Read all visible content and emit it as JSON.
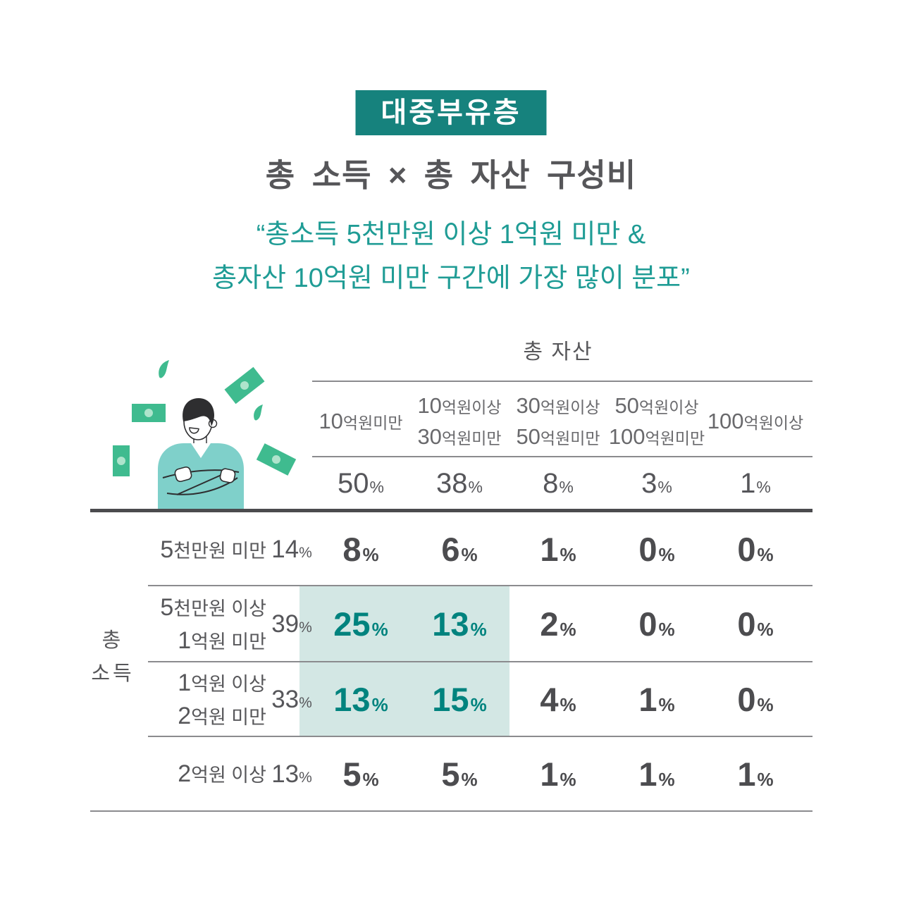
{
  "badge": {
    "label": "대중부유층",
    "bg_color": "#16827D",
    "text_color": "#FFFFFF"
  },
  "title": "총 소득 × 총 자산 구성비",
  "quote": {
    "line1": "“총소득 5천만원 이상 1억원 미만 &",
    "line2": "총자산 10억원 미만 구간에 가장 많이 분포”",
    "color": "#1F9C95"
  },
  "illustration": {
    "description": "person-with-arms-crossed-and-falling-banknotes",
    "money_color": "#3FBB8F",
    "money_dot_color": "#AEE4CC",
    "sweater_color": "#7FD0CA",
    "hair_color": "#2E2E30"
  },
  "table": {
    "col_axis_label": "총 자산",
    "row_axis_lines": [
      "총",
      "소득"
    ],
    "percent_sign": "%",
    "columns": [
      {
        "lines": [
          "10억원미만"
        ],
        "total": 50
      },
      {
        "lines": [
          "10억원이상",
          "30억원미만"
        ],
        "total": 38
      },
      {
        "lines": [
          "30억원이상",
          "50억원미만"
        ],
        "total": 8
      },
      {
        "lines": [
          "50억원이상",
          "100억원미만"
        ],
        "total": 3
      },
      {
        "lines": [
          "100억원이상"
        ],
        "total": 1
      }
    ],
    "rows": [
      {
        "lines": [
          "5천만원 미만"
        ],
        "total": 14,
        "values": [
          8,
          6,
          1,
          0,
          0
        ],
        "highlight": []
      },
      {
        "lines": [
          "5천만원 이상",
          "1억원 미만"
        ],
        "total": 39,
        "values": [
          25,
          13,
          2,
          0,
          0
        ],
        "highlight": [
          0,
          1
        ]
      },
      {
        "lines": [
          "1억원 이상",
          "2억원 미만"
        ],
        "total": 33,
        "values": [
          13,
          15,
          4,
          1,
          0
        ],
        "highlight": [
          0,
          1
        ]
      },
      {
        "lines": [
          "2억원 이상"
        ],
        "total": 13,
        "values": [
          5,
          5,
          1,
          1,
          1
        ],
        "highlight": []
      }
    ],
    "highlight_bg_color": "#D3E7E4",
    "highlight_text_color": "#00837E"
  },
  "chart_data": {
    "type": "table",
    "group_label": "대중부유층",
    "title": "총 소득 × 총 자산 구성비",
    "annotation": "총소득 5천만원 이상 1억원 미만 & 총자산 10억원 미만 구간에 가장 많이 분포",
    "column_axis": "총 자산",
    "row_axis": "총 소득",
    "columns": [
      "10억원미만",
      "10억원이상 30억원미만",
      "30억원이상 50억원미만",
      "50억원이상 100억원미만",
      "100억원이상"
    ],
    "column_totals_pct": [
      50,
      38,
      8,
      3,
      1
    ],
    "rows": [
      "5천만원 미만",
      "5천만원 이상 1억원 미만",
      "1억원 이상 2억원 미만",
      "2억원 이상"
    ],
    "row_totals_pct": [
      14,
      39,
      33,
      13
    ],
    "values_pct": [
      [
        8,
        6,
        1,
        0,
        0
      ],
      [
        25,
        13,
        2,
        0,
        0
      ],
      [
        13,
        15,
        4,
        1,
        0
      ],
      [
        5,
        5,
        1,
        1,
        1
      ]
    ],
    "highlighted_cells_row_col": [
      [
        1,
        0
      ],
      [
        1,
        1
      ],
      [
        2,
        0
      ],
      [
        2,
        1
      ]
    ],
    "unit": "%"
  }
}
